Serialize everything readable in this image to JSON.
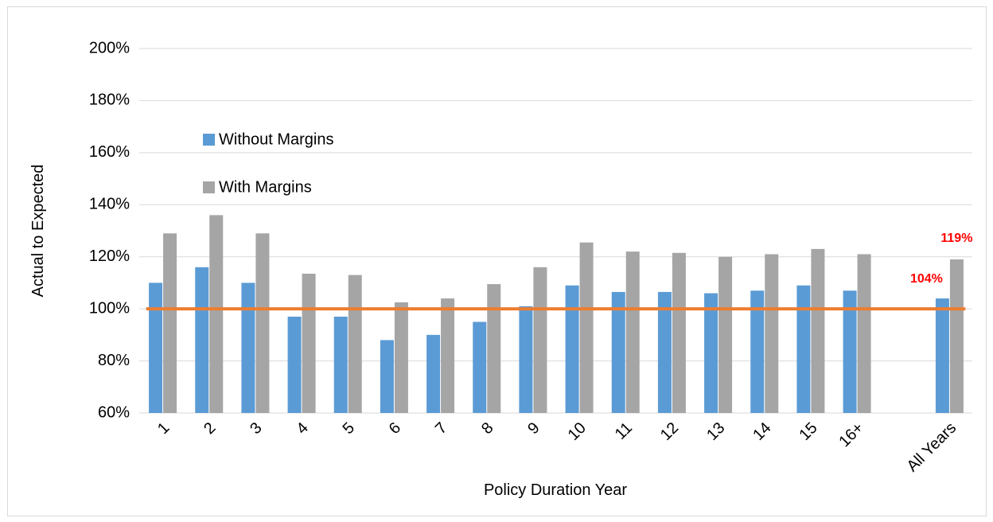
{
  "chart_data": {
    "type": "bar",
    "y_label": "Actual to Expected",
    "x_label": "Policy Duration Year",
    "categories": [
      "1",
      "2",
      "3",
      "4",
      "5",
      "6",
      "7",
      "8",
      "9",
      "10",
      "11",
      "12",
      "13",
      "14",
      "15",
      "16+",
      null,
      "All Years"
    ],
    "series": [
      {
        "name": "Without Margins",
        "color": "#5b9bd5",
        "values": [
          110,
          116,
          110,
          97,
          97,
          88,
          90,
          95,
          101,
          109,
          106.5,
          106.5,
          106,
          107,
          109,
          107,
          null,
          104
        ],
        "value_labels": [
          null,
          null,
          null,
          null,
          null,
          null,
          null,
          null,
          null,
          null,
          null,
          null,
          null,
          null,
          null,
          null,
          null,
          "104%"
        ]
      },
      {
        "name": "With Margins",
        "color": "#a5a5a5",
        "values": [
          129,
          136,
          129,
          113.5,
          113,
          102.5,
          104,
          109.5,
          116,
          125.5,
          122,
          121.5,
          120,
          121,
          123,
          121,
          null,
          119
        ],
        "value_labels": [
          null,
          null,
          null,
          null,
          null,
          null,
          null,
          null,
          null,
          null,
          null,
          null,
          null,
          null,
          null,
          null,
          null,
          "119%"
        ]
      }
    ],
    "value_label_color": "#ff0000",
    "reference_line": {
      "value": 100,
      "color": "#ed7d31"
    },
    "ylim": [
      60,
      200
    ],
    "yticks": [
      {
        "value": 60,
        "label": "60%"
      },
      {
        "value": 80,
        "label": "80%"
      },
      {
        "value": 100,
        "label": "100%"
      },
      {
        "value": 120,
        "label": "120%"
      },
      {
        "value": 140,
        "label": "140%"
      },
      {
        "value": 160,
        "label": "160%"
      },
      {
        "value": 180,
        "label": "180%"
      },
      {
        "value": 200,
        "label": "200%"
      }
    ],
    "grid": true,
    "legend": "upper left"
  }
}
